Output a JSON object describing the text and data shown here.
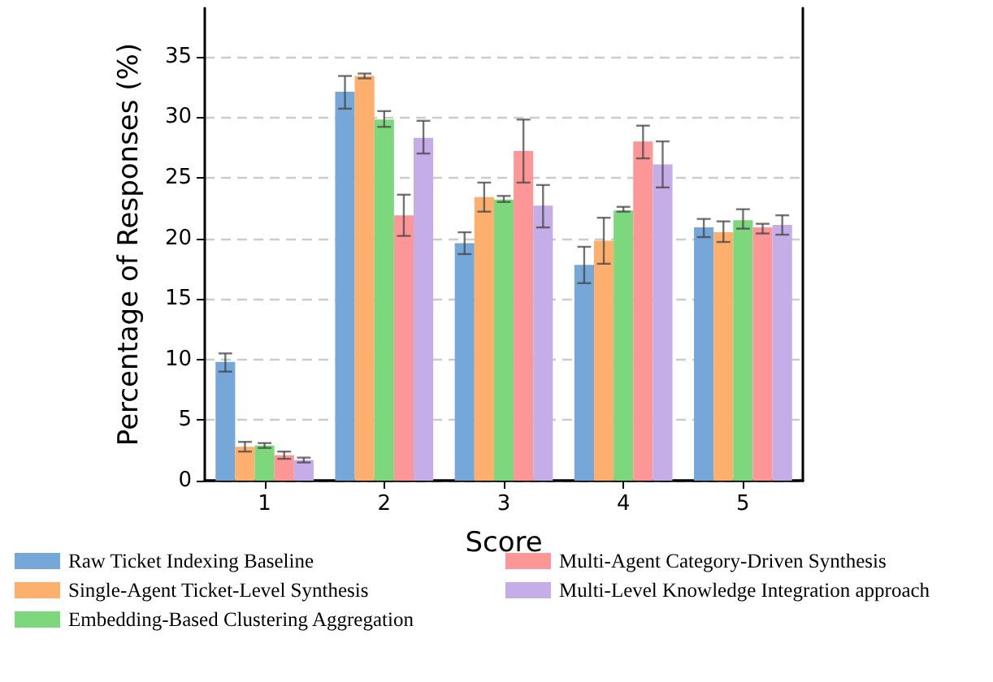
{
  "chart_data": {
    "type": "bar",
    "xlabel": "Score",
    "ylabel": "Percentage of Responses (%)",
    "categories": [
      "1",
      "2",
      "3",
      "4",
      "5"
    ],
    "ylim": [
      0,
      39
    ],
    "yticks": [
      0,
      5,
      10,
      15,
      20,
      25,
      30,
      35
    ],
    "grid": "y",
    "legend": "bottom",
    "series": [
      {
        "name": "Raw Ticket Indexing Baseline",
        "color": "#75a8d8",
        "values": [
          9.8,
          32.1,
          19.6,
          17.8,
          20.9
        ],
        "errors": [
          [
            9.0,
            10.5
          ],
          [
            30.7,
            33.4
          ],
          [
            18.7,
            20.5
          ],
          [
            16.3,
            19.3
          ],
          [
            20.1,
            21.6
          ]
        ]
      },
      {
        "name": "Single-Agent Ticket-Level Synthesis",
        "color": "#fdb06e",
        "values": [
          2.8,
          33.4,
          23.4,
          19.8,
          20.5
        ],
        "errors": [
          [
            2.4,
            3.2
          ],
          [
            33.2,
            33.6
          ],
          [
            22.2,
            24.6
          ],
          [
            17.9,
            21.7
          ],
          [
            19.7,
            21.4
          ]
        ]
      },
      {
        "name": "Embedding-Based Clustering Aggregation",
        "color": "#7dd87d",
        "values": [
          2.9,
          29.8,
          23.2,
          22.3,
          21.5
        ],
        "errors": [
          [
            2.7,
            3.1
          ],
          [
            29.2,
            30.5
          ],
          [
            23.0,
            23.5
          ],
          [
            22.2,
            22.6
          ],
          [
            20.8,
            22.4
          ]
        ]
      },
      {
        "name": "Multi-Agent Category-Driven Synthesis",
        "color": "#fd9797",
        "values": [
          2.1,
          21.9,
          27.2,
          28.0,
          20.9
        ],
        "errors": [
          [
            1.8,
            2.4
          ],
          [
            20.2,
            23.6
          ],
          [
            24.6,
            29.8
          ],
          [
            26.6,
            29.3
          ],
          [
            20.4,
            21.2
          ]
        ]
      },
      {
        "name": "Multi-Level Knowledge Integration approach",
        "color": "#c5ade8",
        "values": [
          1.7,
          28.3,
          22.7,
          26.1,
          21.1
        ],
        "errors": [
          [
            1.5,
            1.9
          ],
          [
            27.0,
            29.7
          ],
          [
            20.9,
            24.4
          ],
          [
            24.2,
            28.0
          ],
          [
            20.3,
            21.9
          ]
        ]
      }
    ]
  }
}
